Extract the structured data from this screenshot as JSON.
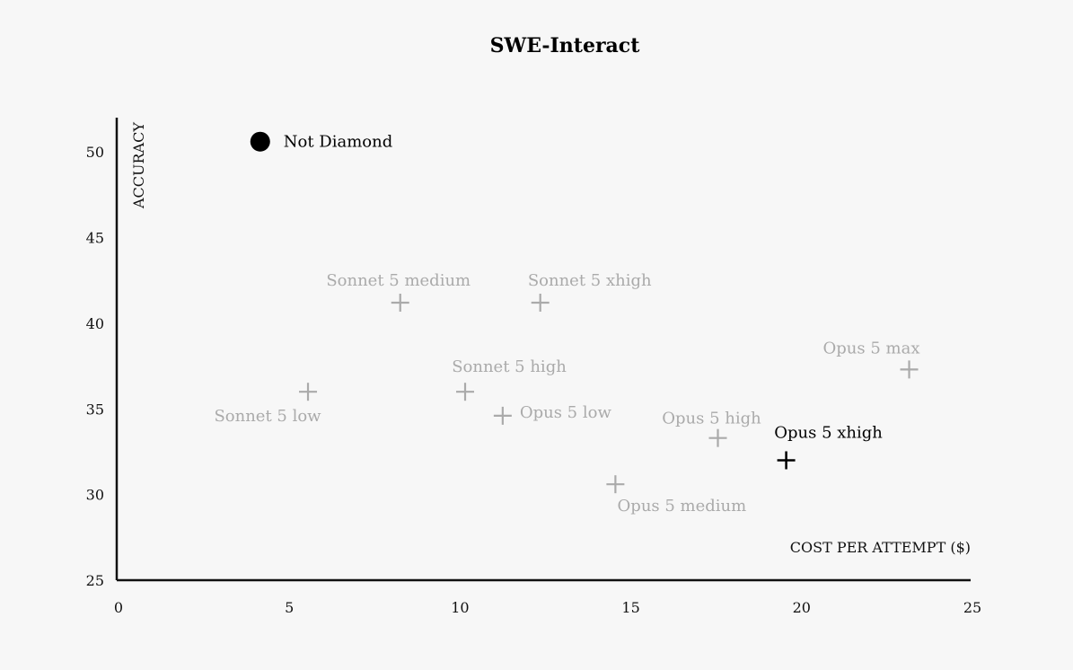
{
  "chart_data": {
    "type": "scatter",
    "title": "SWE-Interact",
    "xlabel": "COST PER ATTEMPT ($)",
    "ylabel": "ACCURACY",
    "xlim": [
      0,
      25
    ],
    "ylim": [
      25,
      52
    ],
    "xticks": [
      0,
      5,
      10,
      15,
      20,
      25
    ],
    "yticks": [
      25,
      30,
      35,
      40,
      45,
      50
    ],
    "grid": false,
    "colors": {
      "highlight": "#000000",
      "muted": "#aaaaaa",
      "axis": "#111111"
    },
    "points": [
      {
        "name": "Not Diamond",
        "x": 4.2,
        "y": 50.6,
        "marker": "circle",
        "highlight": true
      },
      {
        "name": "Sonnet 5 medium",
        "x": 8.3,
        "y": 41.2,
        "marker": "plus",
        "highlight": false
      },
      {
        "name": "Sonnet 5 xhigh",
        "x": 12.4,
        "y": 41.2,
        "marker": "plus",
        "highlight": false
      },
      {
        "name": "Sonnet 5 low",
        "x": 5.6,
        "y": 36.0,
        "marker": "plus",
        "highlight": false
      },
      {
        "name": "Sonnet 5 high",
        "x": 10.2,
        "y": 36.0,
        "marker": "plus",
        "highlight": false
      },
      {
        "name": "Opus 5 low",
        "x": 11.3,
        "y": 34.6,
        "marker": "plus",
        "highlight": false
      },
      {
        "name": "Opus 5 medium",
        "x": 14.6,
        "y": 30.6,
        "marker": "plus",
        "highlight": false
      },
      {
        "name": "Opus 5 high",
        "x": 17.6,
        "y": 33.3,
        "marker": "plus",
        "highlight": false
      },
      {
        "name": "Opus 5 xhigh",
        "x": 19.6,
        "y": 32.0,
        "marker": "plus",
        "highlight": true
      },
      {
        "name": "Opus 5 max",
        "x": 23.2,
        "y": 37.3,
        "marker": "plus",
        "highlight": false
      }
    ]
  }
}
